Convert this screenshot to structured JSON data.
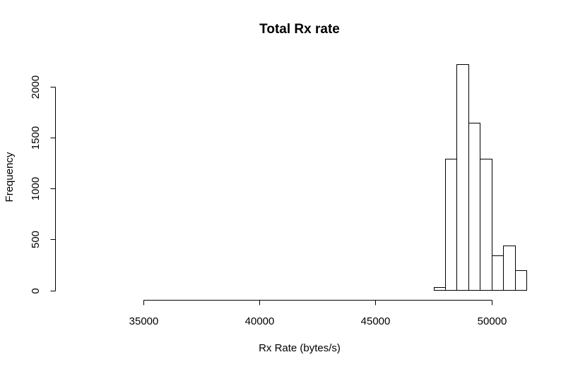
{
  "chart_data": {
    "type": "bar",
    "title": "Total Rx rate",
    "xlabel": "Rx Rate (bytes/s)",
    "ylabel": "Frequency",
    "xlim": [
      32000,
      51500
    ],
    "ylim": [
      0,
      2250
    ],
    "bin_width": 500,
    "xticks": [
      35000,
      40000,
      45000,
      50000
    ],
    "yticks": [
      0,
      500,
      1000,
      1500,
      2000
    ],
    "bins": [
      {
        "x0": 32000,
        "x1": 32500,
        "count": 1
      },
      {
        "x0": 32500,
        "x1": 33000,
        "count": 0
      },
      {
        "x0": 33000,
        "x1": 33500,
        "count": 1
      },
      {
        "x0": 33500,
        "x1": 34000,
        "count": 0
      },
      {
        "x0": 34000,
        "x1": 34500,
        "count": 1
      },
      {
        "x0": 34500,
        "x1": 35000,
        "count": 0
      },
      {
        "x0": 35000,
        "x1": 35500,
        "count": 0
      },
      {
        "x0": 35500,
        "x1": 36000,
        "count": 1
      },
      {
        "x0": 36000,
        "x1": 36500,
        "count": 0
      },
      {
        "x0": 36500,
        "x1": 37000,
        "count": 1
      },
      {
        "x0": 37000,
        "x1": 37500,
        "count": 0
      },
      {
        "x0": 37500,
        "x1": 38000,
        "count": 0
      },
      {
        "x0": 38000,
        "x1": 38500,
        "count": 1
      },
      {
        "x0": 38500,
        "x1": 39000,
        "count": 0
      },
      {
        "x0": 39000,
        "x1": 39500,
        "count": 0
      },
      {
        "x0": 39500,
        "x1": 40000,
        "count": 0
      },
      {
        "x0": 40000,
        "x1": 40500,
        "count": 1
      },
      {
        "x0": 40500,
        "x1": 41000,
        "count": 0
      },
      {
        "x0": 41000,
        "x1": 41500,
        "count": 0
      },
      {
        "x0": 41500,
        "x1": 42000,
        "count": 1
      },
      {
        "x0": 42000,
        "x1": 42500,
        "count": 0
      },
      {
        "x0": 42500,
        "x1": 43000,
        "count": 0
      },
      {
        "x0": 43000,
        "x1": 43500,
        "count": 0
      },
      {
        "x0": 43500,
        "x1": 44000,
        "count": 1
      },
      {
        "x0": 44000,
        "x1": 44500,
        "count": 0
      },
      {
        "x0": 44500,
        "x1": 45000,
        "count": 0
      },
      {
        "x0": 45000,
        "x1": 45500,
        "count": 0
      },
      {
        "x0": 45500,
        "x1": 46000,
        "count": 1
      },
      {
        "x0": 46000,
        "x1": 46500,
        "count": 0
      },
      {
        "x0": 46500,
        "x1": 47000,
        "count": 0
      },
      {
        "x0": 47000,
        "x1": 47500,
        "count": 0
      },
      {
        "x0": 47500,
        "x1": 48000,
        "count": 30
      },
      {
        "x0": 48000,
        "x1": 48500,
        "count": 1295
      },
      {
        "x0": 48500,
        "x1": 49000,
        "count": 2220
      },
      {
        "x0": 49000,
        "x1": 49500,
        "count": 1645
      },
      {
        "x0": 49500,
        "x1": 50000,
        "count": 1295
      },
      {
        "x0": 50000,
        "x1": 50500,
        "count": 345
      },
      {
        "x0": 50500,
        "x1": 51000,
        "count": 440
      },
      {
        "x0": 51000,
        "x1": 51500,
        "count": 195
      }
    ],
    "grid": false
  }
}
